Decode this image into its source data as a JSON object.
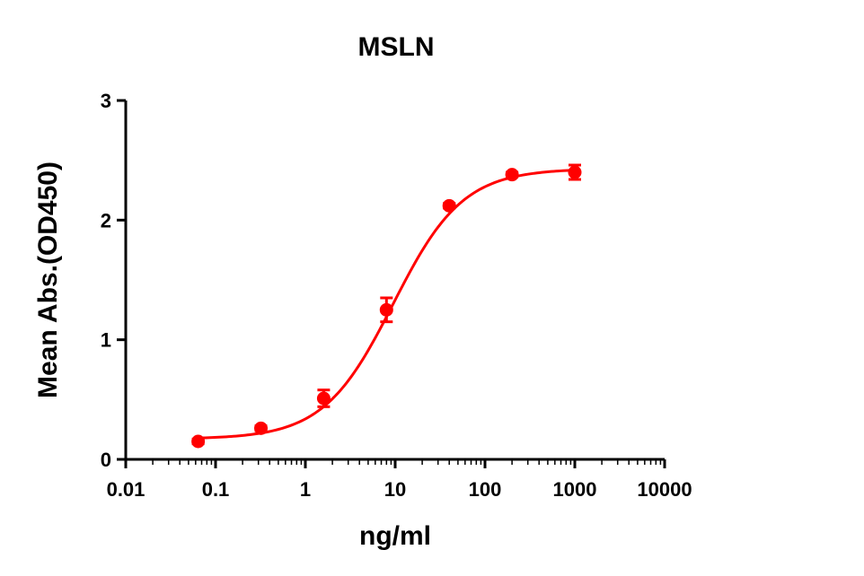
{
  "chart_data": {
    "type": "scatter",
    "title": "MSLN",
    "xlabel": "ng/ml",
    "ylabel": "Mean Abs.(OD450)",
    "xscale": "log",
    "xlim": [
      0.01,
      10000
    ],
    "ylim": [
      0,
      3
    ],
    "x_tick_labels": [
      "0.01",
      "0.1",
      "1",
      "10",
      "100",
      "1000",
      "10000"
    ],
    "x_ticks": [
      0.01,
      0.1,
      1,
      10,
      100,
      1000,
      10000
    ],
    "y_tick_labels": [
      "0",
      "1",
      "2",
      "3"
    ],
    "y_ticks": [
      0,
      1,
      2,
      3
    ],
    "grid": false,
    "legend": "none",
    "color": "#ff0000",
    "series": [
      {
        "points": [
          {
            "x": 0.064,
            "y": 0.15,
            "err": 0.02
          },
          {
            "x": 0.32,
            "y": 0.26,
            "err": 0.02
          },
          {
            "x": 1.6,
            "y": 0.51,
            "err": 0.07
          },
          {
            "x": 8,
            "y": 1.25,
            "err": 0.1
          },
          {
            "x": 40,
            "y": 2.12,
            "err": 0.02
          },
          {
            "x": 200,
            "y": 2.38,
            "err": 0.02
          },
          {
            "x": 1000,
            "y": 2.4,
            "err": 0.06
          }
        ],
        "fit": {
          "model": "4PL",
          "bottom": 0.17,
          "top": 2.43,
          "ec50": 9.5,
          "hill": 1.12
        }
      }
    ]
  }
}
